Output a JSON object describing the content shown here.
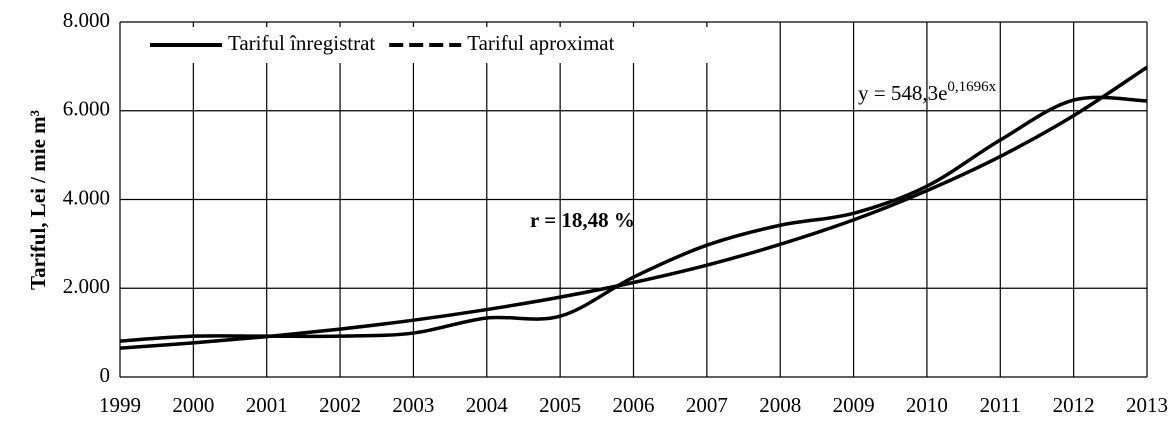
{
  "chart_data": {
    "type": "line",
    "y_label": "Tariful, Lei / mie m³",
    "annotations": [
      {
        "text": "y = 548,3e",
        "superscript": "0,1696x"
      },
      {
        "text": "r = 18,48 %"
      }
    ],
    "x": [
      1999,
      2000,
      2001,
      2002,
      2003,
      2004,
      2005,
      2006,
      2007,
      2008,
      2009,
      2010,
      2011,
      2012,
      2013
    ],
    "series": [
      {
        "name": "Tariful înregistrat",
        "color": "#000000",
        "dashed": false,
        "values": [
          810,
          920,
          920,
          920,
          990,
          1330,
          1370,
          2250,
          2970,
          3420,
          3690,
          4300,
          5340,
          6240,
          6220
        ]
      },
      {
        "name": "Tariful aproximat",
        "color": "#000000",
        "dashed": true,
        "values": [
          650,
          770,
          910,
          1080,
          1280,
          1520,
          1800,
          2130,
          2520,
          2990,
          3540,
          4200,
          4970,
          5890,
          6980
        ]
      }
    ],
    "xlim": [
      1999,
      2013
    ],
    "xticks": [
      1999,
      2000,
      2001,
      2002,
      2003,
      2004,
      2005,
      2006,
      2007,
      2008,
      2009,
      2010,
      2011,
      2012,
      2013
    ],
    "ylim": [
      0,
      8000
    ],
    "yticks": [
      0,
      {
        "value": 2000,
        "label": "2.000"
      },
      {
        "value": 4000,
        "label": "4.000"
      },
      {
        "value": 6000,
        "label": "6.000"
      },
      {
        "value": 8000,
        "label": "8.000"
      }
    ],
    "grid": true,
    "legend": "top-left"
  }
}
